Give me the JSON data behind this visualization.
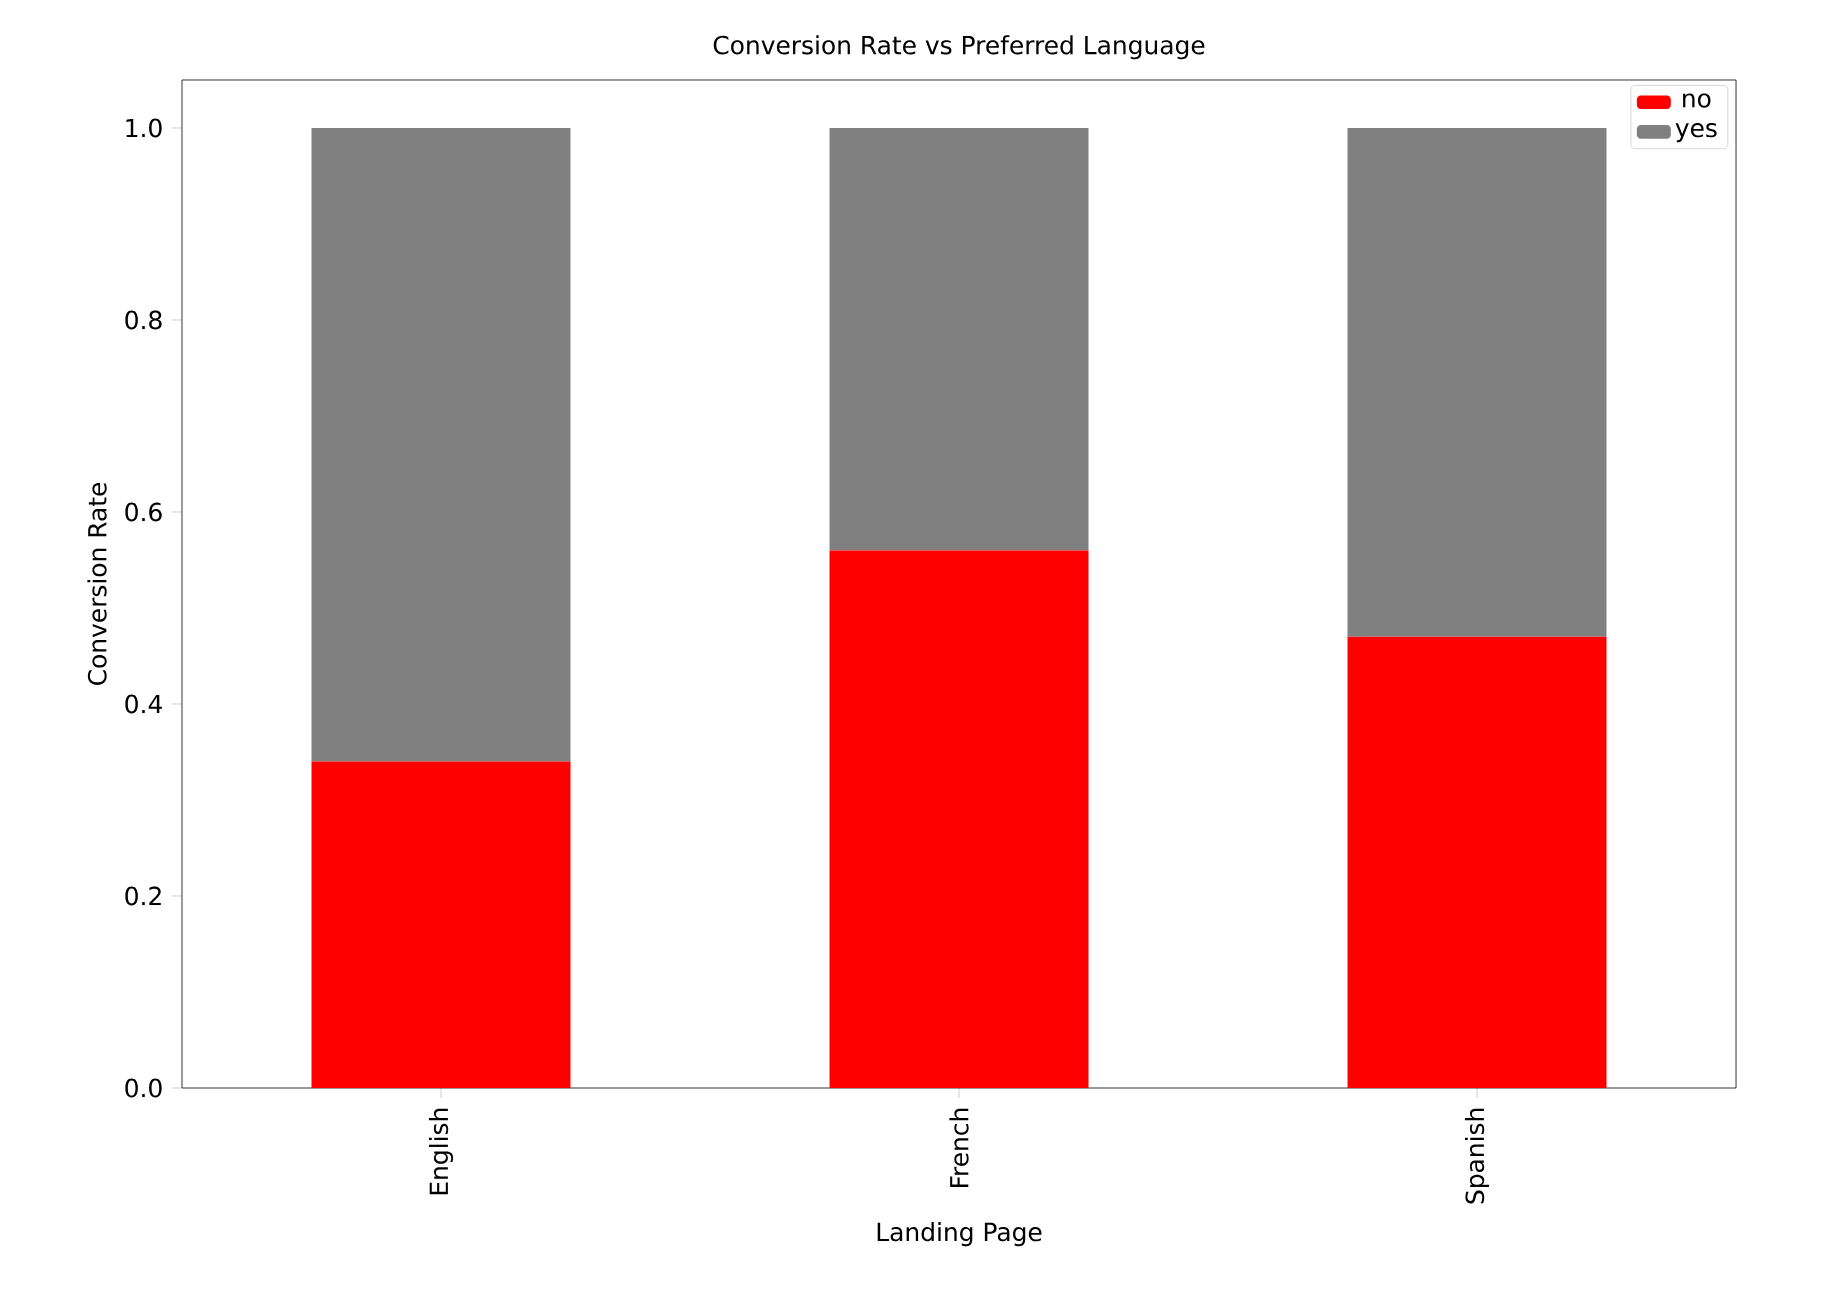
{
  "chart_data": {
    "type": "bar",
    "title": "Conversion Rate vs Preferred Language",
    "xlabel": "Landing Page",
    "ylabel": "Conversion Rate",
    "categories": [
      "English",
      "French",
      "Spanish"
    ],
    "stacked": true,
    "series": [
      {
        "name": "no",
        "color": "#ff0000",
        "values": [
          0.34,
          0.56,
          0.47
        ]
      },
      {
        "name": "yes",
        "color": "#808080",
        "values": [
          0.66,
          0.44,
          0.53
        ]
      }
    ],
    "ylim": [
      0,
      1.05
    ],
    "yticks": [
      {
        "value": 0,
        "label": "0.0"
      },
      {
        "value": 0.2,
        "label": "0.2"
      },
      {
        "value": 0.4,
        "label": "0.4"
      },
      {
        "value": 0.6,
        "label": "0.6"
      },
      {
        "value": 0.8,
        "label": "0.8"
      },
      {
        "value": 1.0,
        "label": "1.0"
      }
    ],
    "legend": "top right"
  }
}
